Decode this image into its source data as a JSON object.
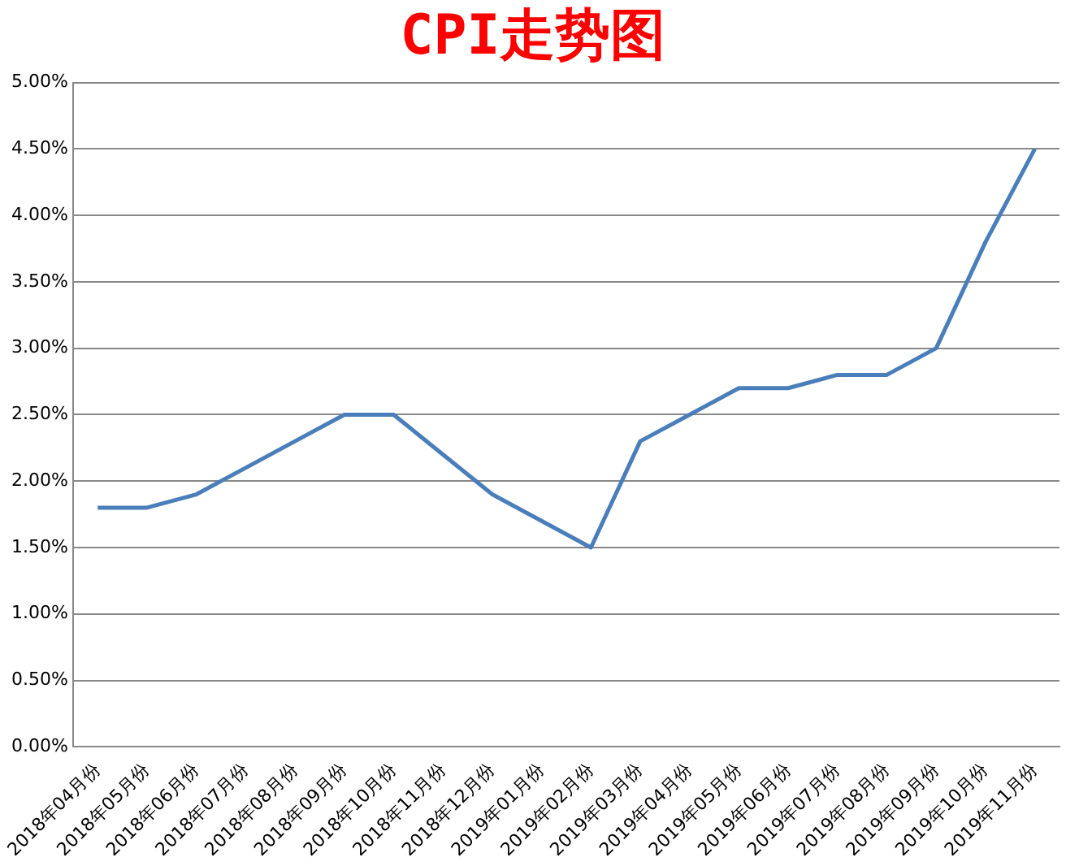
{
  "chart_data": {
    "type": "line",
    "title": "CPI走势图",
    "categories": [
      "2018年04月份",
      "2018年05月份",
      "2018年06月份",
      "2018年07月份",
      "2018年08月份",
      "2018年09月份",
      "2018年10月份",
      "2018年11月份",
      "2018年12月份",
      "2019年01月份",
      "2019年02月份",
      "2019年03月份",
      "2019年04月份",
      "2019年05月份",
      "2019年06月份",
      "2019年07月份",
      "2019年08月份",
      "2019年09月份",
      "2019年10月份",
      "2019年11月份"
    ],
    "series": [
      {
        "color": "#4a7ebb",
        "values": [
          1.8,
          1.8,
          1.9,
          2.1,
          2.3,
          2.5,
          2.5,
          2.2,
          1.9,
          1.7,
          1.5,
          2.3,
          2.5,
          2.7,
          2.7,
          2.8,
          2.8,
          3.0,
          3.8,
          4.5
        ]
      }
    ],
    "ylim": [
      0,
      5
    ],
    "yticks": [
      {
        "value": 0,
        "label": "0.00%"
      },
      {
        "value": 0.5,
        "label": "0.50%"
      },
      {
        "value": 1,
        "label": "1.00%"
      },
      {
        "value": 1.5,
        "label": "1.50%"
      },
      {
        "value": 2,
        "label": "2.00%"
      },
      {
        "value": 2.5,
        "label": "2.50%"
      },
      {
        "value": 3,
        "label": "3.00%"
      },
      {
        "value": 3.5,
        "label": "3.50%"
      },
      {
        "value": 4,
        "label": "4.00%"
      },
      {
        "value": 4.5,
        "label": "4.50%"
      },
      {
        "value": 5,
        "label": "5.00%"
      }
    ],
    "grid": "y",
    "marker": "none",
    "line_style": "solid"
  }
}
